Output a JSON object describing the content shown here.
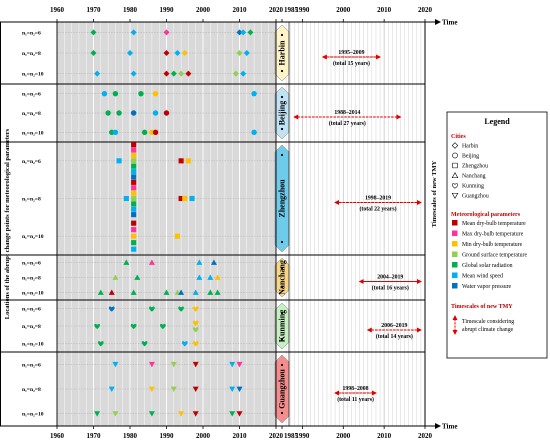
{
  "chart_data": {
    "type": "scatter",
    "ylabel": "Locations of the abrupt change points for meteorological parameters",
    "right_axis_label": "Timescales of new TMY",
    "xlabel": "Time",
    "left_axis": {
      "ticks": [
        "1960",
        "1970",
        "1980",
        "1990",
        "2000",
        "2010",
        "2020"
      ],
      "xlim": [
        1960,
        2020
      ]
    },
    "right_axis": {
      "ticks": [
        "1985",
        "1990",
        "2000",
        "2010",
        "2020"
      ],
      "xlim": [
        1985,
        2020
      ]
    },
    "row_labels": [
      "n₁=n₂=6",
      "n₁=n₂=8",
      "n₁=n₂=10"
    ],
    "param_colors": {
      "mdb": "#c00000",
      "xdb": "#ff3399",
      "ndb": "#ffc000",
      "gst": "#92d050",
      "gsr": "#00b050",
      "mws": "#00b0f0",
      "wvp": "#0070c0"
    },
    "cities": [
      {
        "name": "Harbin",
        "shape": "diamond",
        "band": "#fff3c8",
        "period": "1995–2009",
        "total": "(total 15 years)",
        "range": [
          1995,
          2009
        ],
        "points": {
          "6": [
            [
              1970,
              "gsr"
            ],
            [
              1981,
              "mws"
            ],
            [
              1990,
              "xdb"
            ],
            [
              2010,
              "wvp"
            ],
            [
              2011,
              "mws"
            ],
            [
              2013,
              "gsr"
            ]
          ],
          "8": [
            [
              1970,
              "gsr"
            ],
            [
              1980,
              "mws"
            ],
            [
              1990,
              "mdb"
            ],
            [
              1993,
              "mws"
            ],
            [
              1995,
              "ndb"
            ],
            [
              2010,
              "gst"
            ],
            [
              2012,
              "mws"
            ]
          ],
          "10": [
            [
              1971,
              "mws"
            ],
            [
              1981,
              "mws"
            ],
            [
              1990,
              "mdb"
            ],
            [
              1992,
              "gsr"
            ],
            [
              1994,
              "gst"
            ],
            [
              1996,
              "mdb"
            ],
            [
              2009,
              "gst"
            ],
            [
              2011,
              "mws"
            ]
          ]
        }
      },
      {
        "name": "Beijing",
        "shape": "circle",
        "band": "#bfe3f4",
        "period": "1988–2014",
        "total": "(total 27 years)",
        "range": [
          1988,
          2014
        ],
        "points": {
          "6": [
            [
              1973,
              "mws"
            ],
            [
              1976,
              "gsr"
            ],
            [
              1983,
              "gsr"
            ],
            [
              1987,
              "ndb"
            ],
            [
              2014,
              "mws"
            ]
          ],
          "8": [
            [
              1974,
              "gsr"
            ],
            [
              1977,
              "gsr"
            ],
            [
              1981,
              "wvp"
            ],
            [
              1987,
              "mws"
            ],
            [
              1990,
              "mdb"
            ]
          ],
          "10": [
            [
              1975,
              "gsr"
            ],
            [
              1976,
              "mws"
            ],
            [
              1984,
              "gsr"
            ],
            [
              1986,
              "ndb"
            ],
            [
              1987,
              "mdb"
            ],
            [
              2014,
              "mws"
            ]
          ]
        }
      },
      {
        "name": "Zhengzhou",
        "shape": "square",
        "band": "#6fcbea",
        "period": "1998–2019",
        "total": "(total 22 years)",
        "range": [
          1998,
          2019
        ],
        "points": {
          "6": [
            [
              1977,
              "mws"
            ],
            [
              1981,
              "mdb"
            ],
            [
              1981,
              "xdb"
            ],
            [
              1981,
              "ndb"
            ],
            [
              1981,
              "gst"
            ],
            [
              1981,
              "gsr"
            ],
            [
              1981,
              "mws"
            ],
            [
              1981,
              "wvp"
            ],
            [
              1994,
              "mdb"
            ],
            [
              1996,
              "ndb"
            ]
          ],
          "8": [
            [
              1979,
              "mws"
            ],
            [
              1981,
              "mdb"
            ],
            [
              1981,
              "xdb"
            ],
            [
              1981,
              "ndb"
            ],
            [
              1981,
              "gst"
            ],
            [
              1981,
              "gsr"
            ],
            [
              1981,
              "mws"
            ],
            [
              1981,
              "wvp"
            ],
            [
              1994,
              "mdb"
            ],
            [
              1995,
              "ndb"
            ],
            [
              1997,
              "mws"
            ]
          ],
          "10": [
            [
              1981,
              "mdb"
            ],
            [
              1981,
              "xdb"
            ],
            [
              1981,
              "ndb"
            ],
            [
              1981,
              "gsr"
            ],
            [
              1981,
              "mws"
            ],
            [
              1993,
              "ndb"
            ]
          ]
        }
      },
      {
        "name": "Nanchang",
        "shape": "triangle-up",
        "band": "#f5d587",
        "period": "2004–2019",
        "total": "(total 16 years)",
        "range": [
          2004,
          2019
        ],
        "points": {
          "6": [
            [
              1979,
              "gsr"
            ],
            [
              1986,
              "xdb"
            ],
            [
              1999,
              "mws"
            ],
            [
              2003,
              "wvp"
            ]
          ],
          "8": [
            [
              1976,
              "gst"
            ],
            [
              1982,
              "gsr"
            ],
            [
              1999,
              "mws"
            ],
            [
              2002,
              "mws"
            ],
            [
              2004,
              "ndb"
            ]
          ],
          "10": [
            [
              1972,
              "gsr"
            ],
            [
              1975,
              "mdb"
            ],
            [
              1981,
              "gsr"
            ],
            [
              1990,
              "gsr"
            ],
            [
              1993,
              "gst"
            ],
            [
              1994,
              "wvp"
            ],
            [
              1998,
              "mws"
            ],
            [
              2002,
              "gsr"
            ],
            [
              2004,
              "gsr"
            ]
          ]
        }
      },
      {
        "name": "Kunming",
        "shape": "heart",
        "band": "#c6efc2",
        "period": "2006–2019",
        "total": "(total 14 years)",
        "range": [
          2006,
          2019
        ],
        "points": {
          "6": [
            [
              1975,
              "wvp"
            ],
            [
              1986,
              "gsr"
            ],
            [
              1994,
              "gsr"
            ],
            [
              1998,
              "ndb"
            ]
          ],
          "8": [
            [
              1971,
              "gsr"
            ],
            [
              1981,
              "gsr"
            ],
            [
              1989,
              "gsr"
            ],
            [
              1998,
              "ndb"
            ],
            [
              1998,
              "gst"
            ]
          ],
          "10": [
            [
              1972,
              "gsr"
            ],
            [
              1984,
              "gsr"
            ],
            [
              1995,
              "mws"
            ],
            [
              1998,
              "ndb"
            ]
          ]
        }
      },
      {
        "name": "Guangzhou",
        "shape": "triangle-down",
        "band": "#f48e8e",
        "period": "1998–2008",
        "total": "(total 11 years)",
        "range": [
          1998,
          2008
        ],
        "points": {
          "6": [
            [
              1976,
              "mws"
            ],
            [
              1986,
              "xdb"
            ],
            [
              1992,
              "gst"
            ],
            [
              1998,
              "mdb"
            ],
            [
              2008,
              "mws"
            ],
            [
              2010,
              "xdb"
            ]
          ],
          "8": [
            [
              1975,
              "mws"
            ],
            [
              1986,
              "ndb"
            ],
            [
              1992,
              "gst"
            ],
            [
              1998,
              "mdb"
            ],
            [
              2008,
              "mws"
            ],
            [
              2010,
              "wvp"
            ]
          ],
          "10": [
            [
              1971,
              "gsr"
            ],
            [
              1976,
              "gst"
            ],
            [
              1986,
              "gsr"
            ],
            [
              1994,
              "ndb"
            ],
            [
              1998,
              "mdb"
            ],
            [
              2008,
              "gsr"
            ],
            [
              2010,
              "mdb"
            ]
          ]
        }
      }
    ],
    "legend": {
      "title": "Legend",
      "cities_title": "Cities",
      "cities": [
        {
          "name": "Harbin",
          "shape": "diamond"
        },
        {
          "name": "Beijing",
          "shape": "circle"
        },
        {
          "name": "Zhengzhou",
          "shape": "square"
        },
        {
          "name": "Nanchang",
          "shape": "triangle-up"
        },
        {
          "name": "Kunming",
          "shape": "heart"
        },
        {
          "name": "Guangzhou",
          "shape": "triangle-down"
        }
      ],
      "params_title": "Meteorological parameters",
      "params": [
        {
          "key": "mdb",
          "name": "Mean dry-bulb temperature"
        },
        {
          "key": "xdb",
          "name": "Max dry-bulb temperature"
        },
        {
          "key": "ndb",
          "name": "Min dry-bulb temperature"
        },
        {
          "key": "gst",
          "name": "Ground surface temperature"
        },
        {
          "key": "gsr",
          "name": "Global solar radiation"
        },
        {
          "key": "mws",
          "name": "Mean wind speed"
        },
        {
          "key": "wvp",
          "name": "Water vapor pressure"
        }
      ],
      "tmy_title": "Timescales of new TMY",
      "tmy_items": [
        "Timescale considering",
        "abrupt climate change"
      ]
    }
  }
}
